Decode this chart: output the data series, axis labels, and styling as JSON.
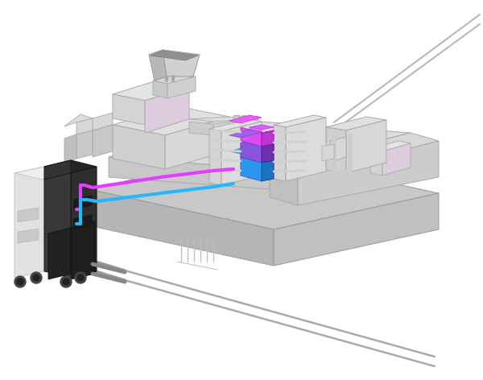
{
  "bg_color": "#ffffff",
  "c_light": "#e8e8e8",
  "c_mid": "#d0d0d0",
  "c_dark": "#b8b8b8",
  "c_darker": "#a0a0a0",
  "c_darkest": "#888888",
  "c_tcu_white": "#e2e2e2",
  "c_tcu_dark": "#2a2a2a",
  "c_tcu_dark2": "#3c3c3c",
  "c_tcu_gray": "#525252",
  "pipe_pink": "#e040fb",
  "pipe_blue": "#29b6f6",
  "mold_magenta": "#cc44ee",
  "mold_purple": "#8844cc",
  "mold_blue": "#2288ee",
  "mold_cyan": "#22aadd",
  "wire_color": "#aaaaaa",
  "edge_color": "#999999"
}
